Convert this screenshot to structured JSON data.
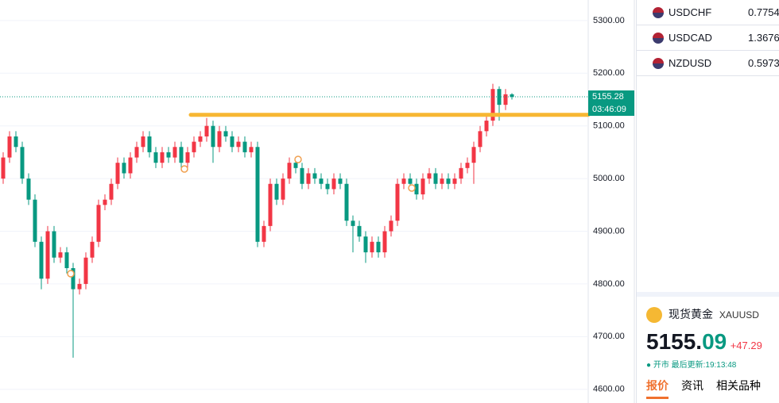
{
  "chart_data": {
    "type": "candlestick",
    "open": [
      5000,
      5040,
      5080,
      5060,
      5000,
      4960,
      4880,
      4810,
      4900,
      4850,
      4860,
      4830,
      4790,
      4800,
      4850,
      4880,
      4950,
      4960,
      4990,
      5030,
      5010,
      5040,
      5060,
      5080,
      5050,
      5030,
      5050,
      5040,
      5060,
      5030,
      5050,
      5070,
      5080,
      5100,
      5060,
      5090,
      5080,
      5060,
      5070,
      5050,
      5060,
      4880,
      4910,
      4990,
      4960,
      5000,
      5030,
      5020,
      4990,
      5010,
      5000,
      4990,
      4980,
      5000,
      4990,
      4920,
      4910,
      4890,
      4860,
      4880,
      4860,
      4900,
      4920,
      4990,
      5000,
      4990,
      4970,
      5000,
      5010,
      4990,
      5000,
      4990,
      5000,
      5020,
      5030,
      5060,
      5090,
      5110,
      5170,
      5140,
      5160
    ],
    "high": [
      5050,
      5090,
      5090,
      5070,
      5010,
      4970,
      4890,
      4910,
      4910,
      4870,
      4870,
      4840,
      4810,
      4860,
      4890,
      4960,
      4970,
      5000,
      5040,
      5040,
      5050,
      5070,
      5090,
      5090,
      5060,
      5060,
      5060,
      5070,
      5070,
      5060,
      5080,
      5090,
      5115,
      5110,
      5100,
      5100,
      5090,
      5080,
      5080,
      5070,
      5070,
      4920,
      5000,
      5000,
      5010,
      5040,
      5040,
      5030,
      5020,
      5020,
      5010,
      5000,
      5010,
      5010,
      5000,
      4930,
      4920,
      4900,
      4890,
      4890,
      4910,
      4930,
      5000,
      5010,
      5010,
      5000,
      5010,
      5020,
      5020,
      5010,
      5010,
      5010,
      5030,
      5040,
      5070,
      5100,
      5120,
      5180,
      5175,
      5170,
      5162
    ],
    "low": [
      4990,
      5030,
      5050,
      4990,
      4950,
      4870,
      4790,
      4800,
      4840,
      4840,
      4820,
      4660,
      4780,
      4790,
      4840,
      4870,
      4940,
      4950,
      4980,
      5000,
      5000,
      5030,
      5050,
      5040,
      5020,
      5020,
      5030,
      5030,
      5020,
      5020,
      5040,
      5060,
      5070,
      5030,
      5050,
      5070,
      5050,
      5050,
      5040,
      5040,
      4870,
      4870,
      4900,
      4950,
      4950,
      4990,
      5010,
      4980,
      4980,
      4990,
      4980,
      4970,
      4970,
      4980,
      4910,
      4860,
      4880,
      4840,
      4850,
      4850,
      4850,
      4890,
      4910,
      4980,
      4980,
      4960,
      4960,
      4990,
      4980,
      4980,
      4980,
      4980,
      4990,
      5010,
      4990,
      5050,
      5080,
      5100,
      5110,
      5130,
      5150
    ],
    "close": [
      5040,
      5080,
      5060,
      5000,
      4960,
      4880,
      4810,
      4900,
      4850,
      4860,
      4830,
      4790,
      4800,
      4850,
      4880,
      4950,
      4960,
      4990,
      5030,
      5010,
      5040,
      5060,
      5080,
      5050,
      5030,
      5050,
      5040,
      5060,
      5030,
      5050,
      5070,
      5080,
      5100,
      5060,
      5090,
      5080,
      5060,
      5070,
      5050,
      5060,
      4880,
      4910,
      4990,
      4960,
      5000,
      5030,
      5020,
      4990,
      5010,
      5000,
      4990,
      4980,
      5000,
      4990,
      4920,
      4910,
      4890,
      4860,
      4880,
      4860,
      4900,
      4920,
      4990,
      5000,
      4990,
      4970,
      5000,
      5010,
      4990,
      5000,
      4990,
      5000,
      5020,
      5030,
      5060,
      5090,
      5110,
      5170,
      5140,
      5160,
      5155
    ],
    "up_color": "#f23645",
    "down_color": "#089981",
    "ylim": [
      4574,
      5339
    ],
    "yticks": [
      {
        "value": 4600,
        "label": "4600.00"
      },
      {
        "value": 4700,
        "label": "4700.00"
      },
      {
        "value": 4800,
        "label": "4800.00"
      },
      {
        "value": 4900,
        "label": "4900.00"
      },
      {
        "value": 5000,
        "label": "5000.00"
      },
      {
        "value": 5100,
        "label": "5100.00"
      },
      {
        "value": 5200,
        "label": "5200.00"
      },
      {
        "value": 5300,
        "label": "5300.00"
      }
    ],
    "grid": true,
    "last_price": 5155.28,
    "countdown": "03:46:09",
    "level_line": 5121,
    "level_color": "#f7b733"
  },
  "watchlist": [
    {
      "symbol": "USDCHF",
      "price": "0.7754"
    },
    {
      "symbol": "USDCAD",
      "price": "1.3676"
    },
    {
      "symbol": "NZDUSD",
      "price": "0.5973"
    }
  ],
  "quote": {
    "name": "现货黄金",
    "symbol": "XAUUSD",
    "price_int": "5155.",
    "price_dec": "09",
    "change": "+47.29",
    "status": "开市",
    "updated": "最后更新:19:13:48",
    "tabs": [
      "报价",
      "资讯",
      "相关品种"
    ]
  }
}
